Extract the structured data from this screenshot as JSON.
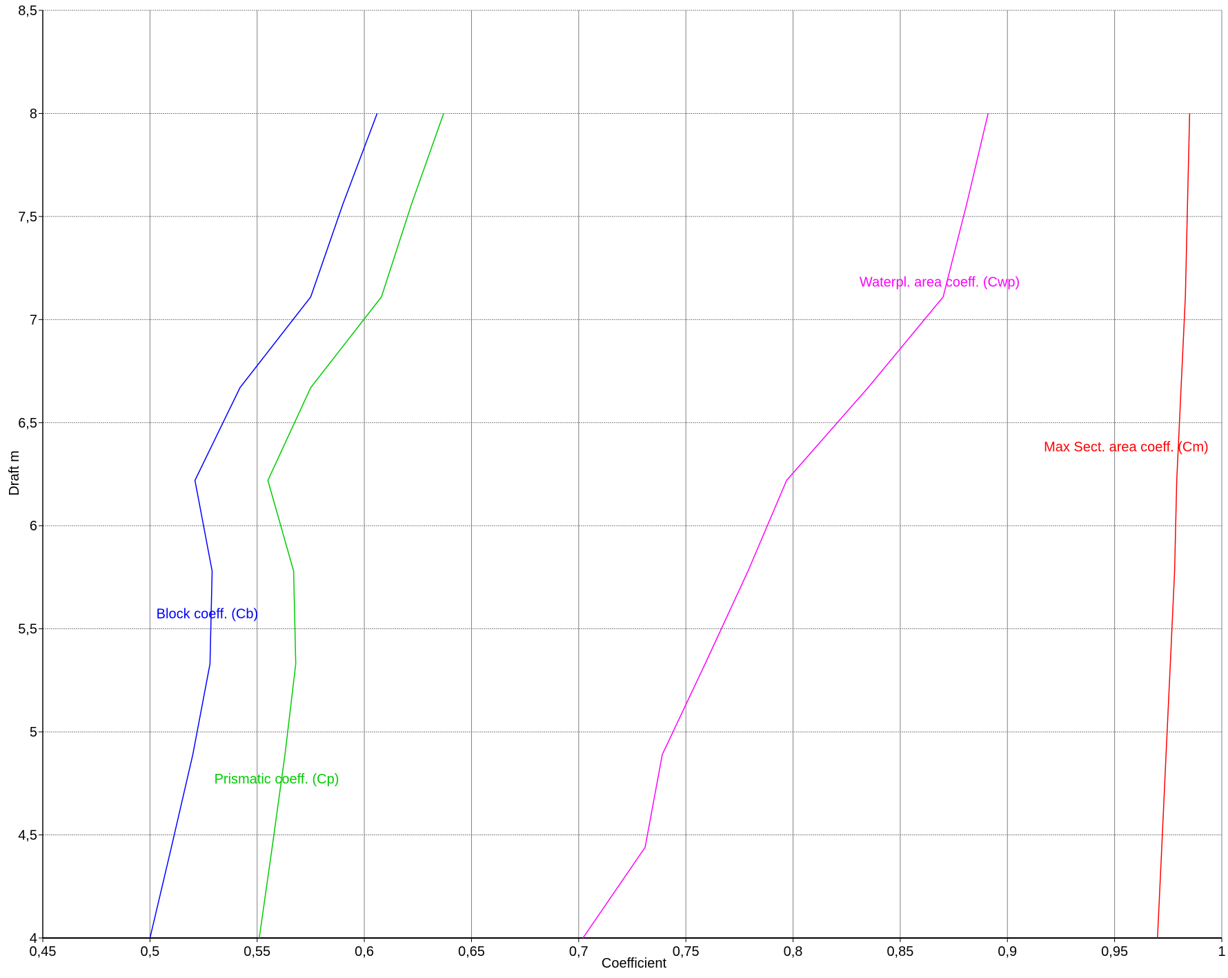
{
  "chart_data": {
    "type": "line",
    "title": "",
    "xlabel": "Coefficient",
    "ylabel": "Draft  m",
    "xlim": [
      0.45,
      1.0
    ],
    "ylim": [
      4.0,
      8.5
    ],
    "grid": true,
    "xticks": [
      0.45,
      0.5,
      0.55,
      0.6,
      0.65,
      0.7,
      0.75,
      0.8,
      0.85,
      0.9,
      0.95,
      1.0
    ],
    "yticks": [
      4.0,
      4.5,
      5.0,
      5.5,
      6.0,
      6.5,
      7.0,
      7.5,
      8.0,
      8.5
    ],
    "xtick_labels": [
      "0,45",
      "0,5",
      "0,55",
      "0,6",
      "0,65",
      "0,7",
      "0,75",
      "0,8",
      "0,85",
      "0,9",
      "0,95",
      "1"
    ],
    "ytick_labels": [
      "4",
      "4,5",
      "5",
      "5,5",
      "6",
      "6,5",
      "7",
      "7,5",
      "8",
      "8,5"
    ],
    "series": [
      {
        "name": "Block coeff. (Cb)",
        "color": "#0000ff",
        "x": [
          0.5,
          0.51,
          0.52,
          0.528,
          0.529,
          0.521,
          0.542,
          0.575,
          0.59,
          0.606
        ],
        "y": [
          4.0,
          4.44,
          4.89,
          5.33,
          5.78,
          6.22,
          6.67,
          7.11,
          7.56,
          8.0
        ]
      },
      {
        "name": "Prismatic coeff. (Cp)",
        "color": "#00cc00",
        "x": [
          0.551,
          0.557,
          0.563,
          0.568,
          0.567,
          0.555,
          0.575,
          0.608,
          0.622,
          0.637
        ],
        "y": [
          4.0,
          4.44,
          4.89,
          5.33,
          5.78,
          6.22,
          6.67,
          7.11,
          7.56,
          8.0
        ]
      },
      {
        "name": "Waterpl. area coeff. (Cwp)",
        "color": "#ff00ff",
        "x": [
          0.702,
          0.731,
          0.739,
          0.759,
          0.779,
          0.797,
          0.835,
          0.87,
          0.881,
          0.891
        ],
        "y": [
          4.0,
          4.44,
          4.89,
          5.33,
          5.78,
          6.22,
          6.67,
          7.11,
          7.56,
          8.0
        ]
      },
      {
        "name": "Max Sect. area coeff. (Cm)",
        "color": "#ff0000",
        "x": [
          0.97,
          0.972,
          0.974,
          0.976,
          0.978,
          0.979,
          0.981,
          0.983,
          0.984,
          0.985
        ],
        "y": [
          4.0,
          4.44,
          4.89,
          5.33,
          5.78,
          6.22,
          6.67,
          7.11,
          7.56,
          8.0
        ]
      }
    ],
    "annotations": [
      {
        "text": "Block coeff. (Cb)",
        "x": 0.503,
        "y": 5.55,
        "color": "#0000ff"
      },
      {
        "text": "Prismatic coeff. (Cp)",
        "x": 0.53,
        "y": 4.75,
        "color": "#00cc00"
      },
      {
        "text": "Waterpl. area coeff. (Cwp)",
        "x": 0.831,
        "y": 7.16,
        "color": "#ff00ff"
      },
      {
        "text": "Max Sect. area coeff. (Cm)",
        "x": 0.917,
        "y": 6.36,
        "color": "#ff0000"
      }
    ]
  }
}
